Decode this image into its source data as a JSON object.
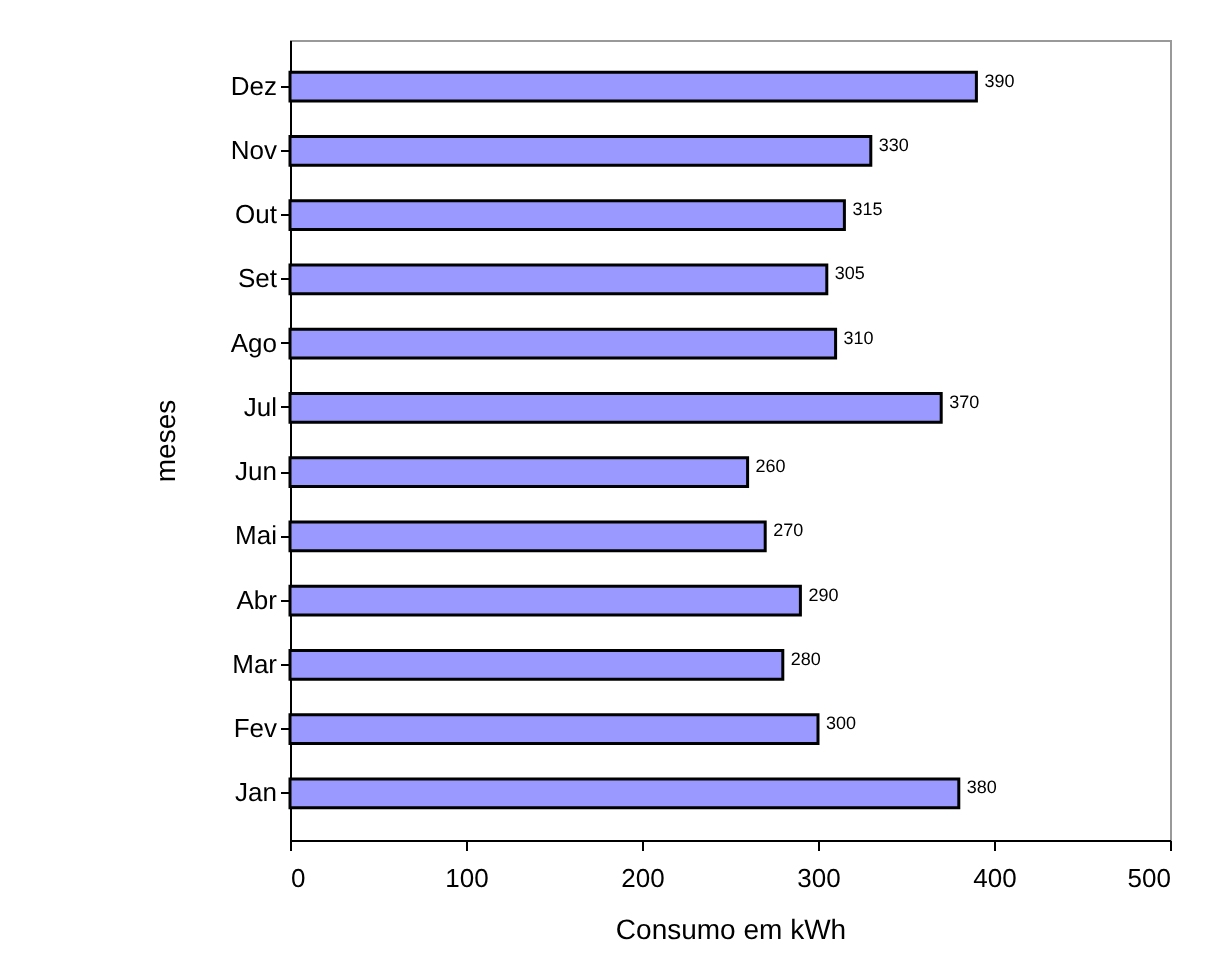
{
  "chart_data": {
    "type": "bar",
    "orientation": "horizontal",
    "xlabel": "Consumo em kWh",
    "ylabel": "meses",
    "categories": [
      "Dez",
      "Nov",
      "Out",
      "Set",
      "Ago",
      "Jul",
      "Jun",
      "Mai",
      "Abr",
      "Mar",
      "Fev",
      "Jan"
    ],
    "values": [
      390,
      330,
      315,
      305,
      310,
      370,
      260,
      270,
      290,
      280,
      300,
      380
    ],
    "color": "#9999ff",
    "xlim": [
      0,
      500
    ],
    "xticks": [
      0,
      100,
      200,
      300,
      400,
      500
    ],
    "data_labels": true,
    "grid": false
  }
}
